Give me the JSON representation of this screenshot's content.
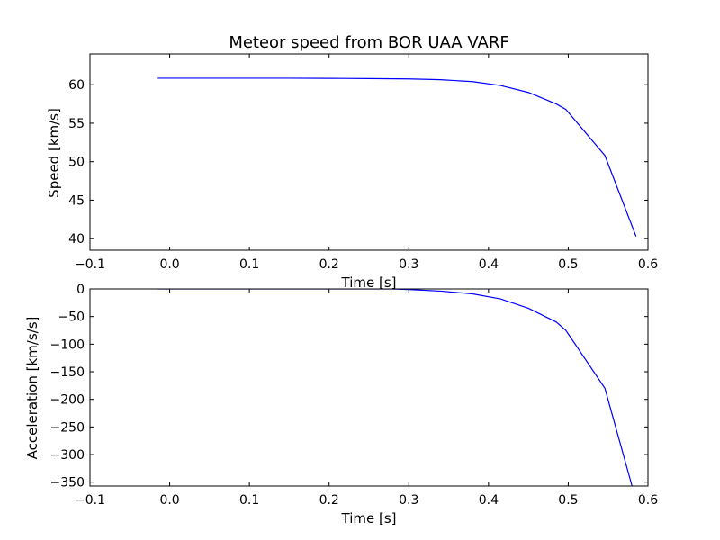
{
  "chart_data": [
    {
      "type": "line",
      "title": "Meteor speed from  BOR UAA VARF",
      "xlabel": "Time [s]",
      "ylabel": "Speed [km/s]",
      "xlim": [
        -0.1,
        0.6
      ],
      "ylim": [
        38.5,
        64
      ],
      "xticks": [
        -0.1,
        0.0,
        0.1,
        0.2,
        0.3,
        0.4,
        0.5,
        0.6
      ],
      "xtick_labels": [
        "−0.1",
        "0.0",
        "0.1",
        "0.2",
        "0.3",
        "0.4",
        "0.5",
        "0.6"
      ],
      "yticks": [
        40,
        45,
        50,
        55,
        60
      ],
      "ytick_labels": [
        "40",
        "45",
        "50",
        "55",
        "60"
      ],
      "grid": false,
      "series": [
        {
          "color": "#0000ff",
          "x": [
            -0.015,
            0.05,
            0.1,
            0.15,
            0.2,
            0.25,
            0.3,
            0.34,
            0.38,
            0.415,
            0.45,
            0.485,
            0.497,
            0.546,
            0.585
          ],
          "y": [
            60.85,
            60.85,
            60.85,
            60.85,
            60.83,
            60.8,
            60.75,
            60.65,
            60.4,
            59.9,
            59.0,
            57.5,
            56.8,
            50.8,
            40.3
          ]
        }
      ]
    },
    {
      "type": "line",
      "xlabel": "Time [s]",
      "ylabel": "Acceleration [km/s/s]",
      "xlim": [
        -0.1,
        0.6
      ],
      "ylim": [
        -357,
        0
      ],
      "xticks": [
        -0.1,
        0.0,
        0.1,
        0.2,
        0.3,
        0.4,
        0.5,
        0.6
      ],
      "xtick_labels": [
        "−0.1",
        "0.0",
        "0.1",
        "0.2",
        "0.3",
        "0.4",
        "0.5",
        "0.6"
      ],
      "yticks": [
        0,
        -50,
        -100,
        -150,
        -200,
        -250,
        -300,
        -350
      ],
      "ytick_labels": [
        "0",
        "−50",
        "−100",
        "−150",
        "−200",
        "−250",
        "−300",
        "−350"
      ],
      "grid": false,
      "series": [
        {
          "color": "#0000ff",
          "x": [
            -0.015,
            0.1,
            0.2,
            0.28,
            0.3,
            0.34,
            0.38,
            0.415,
            0.45,
            0.485,
            0.497,
            0.546,
            0.58
          ],
          "y": [
            0.0,
            0.0,
            0.0,
            0.0,
            -1.0,
            -4.0,
            -9.0,
            -18.0,
            -35.0,
            -60.0,
            -75.0,
            -180.0,
            -357.0
          ]
        }
      ]
    }
  ]
}
